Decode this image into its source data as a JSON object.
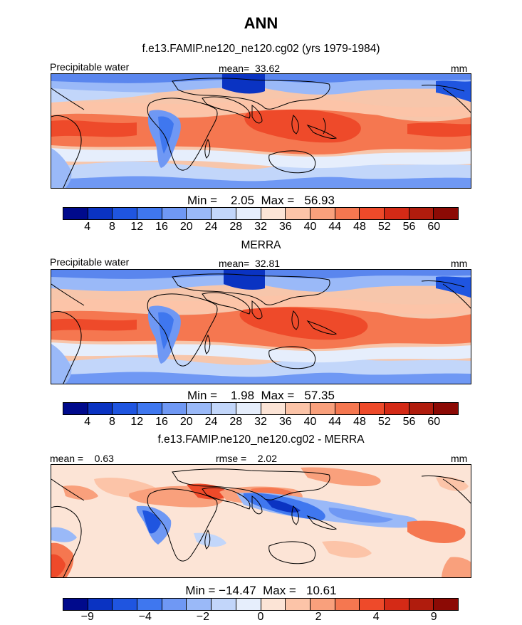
{
  "title": "ANN",
  "panels": [
    {
      "subtitle": "f.e13.FAMIP.ne120_ne120.cg02 (yrs 1979-1984)",
      "label_left": "Precipitable water",
      "label_mid": "mean=  33.62",
      "label_right": "mm",
      "minmax": "Min =    2.05  Max =   56.93"
    },
    {
      "subtitle": "MERRA",
      "label_left": "Precipitable water",
      "label_mid": "mean=  32.81",
      "label_right": "mm",
      "minmax": "Min =    1.98  Max =   57.35"
    },
    {
      "subtitle": "f.e13.FAMIP.ne120_ne120.cg02 - MERRA",
      "label_left": "mean =    0.63",
      "label_mid": "rmse =    2.02",
      "label_right": "mm",
      "minmax": "Min = −14.47  Max =   10.61"
    }
  ],
  "colorbar_abs": {
    "colors": [
      "#000a8c",
      "#0a33c2",
      "#1f55e0",
      "#3f77ef",
      "#6f98f4",
      "#9ab9f8",
      "#c2d6fa",
      "#e6eefc",
      "#fce4d6",
      "#fcc4a8",
      "#f9a07c",
      "#f57750",
      "#ee4a2a",
      "#d42a16",
      "#b01c0d",
      "#8c0a05"
    ],
    "ticks": [
      "4",
      "8",
      "12",
      "16",
      "20",
      "24",
      "28",
      "32",
      "36",
      "40",
      "44",
      "48",
      "52",
      "56",
      "60"
    ]
  },
  "colorbar_diff": {
    "colors": [
      "#000a8c",
      "#0a33c2",
      "#1f55e0",
      "#3f77ef",
      "#6f98f4",
      "#9ab9f8",
      "#c2d6fa",
      "#e6eefc",
      "#fce4d6",
      "#fcc4a8",
      "#f9a07c",
      "#f57750",
      "#ee4a2a",
      "#d42a16",
      "#b01c0d",
      "#8c0a05"
    ],
    "ticks": [
      "−9",
      "",
      "−4",
      "",
      "−2",
      "",
      "0",
      "",
      "2",
      "",
      "4",
      "",
      "9"
    ]
  }
}
